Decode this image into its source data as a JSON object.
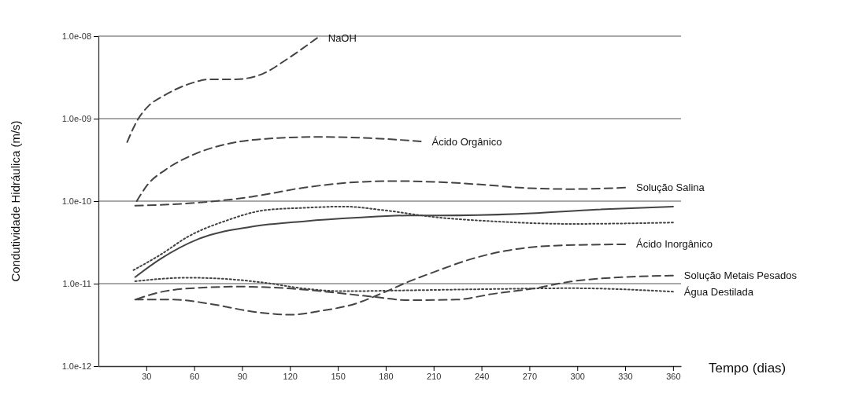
{
  "chart_data": {
    "type": "line",
    "xlabel": "Tempo (dias)",
    "ylabel": "Condutividade Hidráulica (m/s)",
    "xlim": [
      0,
      365
    ],
    "xticks": [
      30,
      60,
      90,
      120,
      150,
      180,
      210,
      240,
      270,
      300,
      330,
      360
    ],
    "ylim": [
      1e-12,
      1e-08
    ],
    "yticks": [
      {
        "value": 1e-12,
        "label": "1.0e-12"
      },
      {
        "value": 1e-11,
        "label": "1.0e-11"
      },
      {
        "value": 1e-10,
        "label": "1.0e-10"
      },
      {
        "value": 1e-09,
        "label": "1.0e-09"
      },
      {
        "value": 1e-08,
        "label": "1.0e-08"
      }
    ],
    "log": true,
    "grid": "y",
    "marker": "none",
    "series": [
      {
        "name": "NaOH",
        "color": "#444444",
        "line_style": "dashed",
        "x": [
          18,
          25,
          31,
          41,
          56,
          70,
          86,
          103,
          119,
          137
        ],
        "values": [
          5.2e-10,
          1e-09,
          1.4e-09,
          1.9e-09,
          2.6e-09,
          3e-09,
          3e-09,
          3.5e-09,
          5.4e-09,
          9.5e-09
        ]
      },
      {
        "name": "Ácido Orgânico",
        "color": "#444444",
        "line_style": "dashed",
        "x": [
          24,
          31,
          42,
          60,
          80,
          105,
          137,
          170,
          202
        ],
        "values": [
          1e-10,
          1.6e-10,
          2.4e-10,
          3.7e-10,
          4.9e-10,
          5.7e-10,
          6e-10,
          5.8e-10,
          5.3e-10
        ]
      },
      {
        "name": "Solução Salina",
        "color": "#444444",
        "line_style": "dashed",
        "x": [
          23,
          63,
          96,
          129,
          162,
          186,
          214,
          247,
          263,
          296,
          330
        ],
        "values": [
          8.8e-11,
          9.6e-11,
          1.13e-10,
          1.46e-10,
          1.7e-10,
          1.75e-10,
          1.7e-10,
          1.55e-10,
          1.46e-10,
          1.4e-10,
          1.46e-10
        ]
      },
      {
        "color": "#444444",
        "line_style": "dotted",
        "x": [
          22,
          39,
          56,
          80,
          105,
          129,
          154,
          178,
          211,
          247,
          296,
          360
        ],
        "values": [
          1.46e-11,
          2.25e-11,
          3.7e-11,
          5.8e-11,
          7.8e-11,
          8.3e-11,
          8.6e-11,
          7.8e-11,
          6.4e-11,
          5.7e-11,
          5.3e-11,
          5.5e-11
        ]
      },
      {
        "color": "#444444",
        "line_style": "solid",
        "x": [
          23,
          39,
          63,
          96,
          129,
          162,
          194,
          214,
          263,
          312,
          360
        ],
        "values": [
          1.2e-11,
          2e-11,
          3.5e-11,
          4.9e-11,
          5.7e-11,
          6.3e-11,
          6.7e-11,
          6.7e-11,
          7e-11,
          7.9e-11,
          8.6e-11
        ]
      },
      {
        "name": "Ácido Inorgânico",
        "color": "#444444",
        "line_style": "dashed",
        "x": [
          23,
          47,
          72,
          96,
          121,
          137,
          162,
          178,
          195,
          211,
          234,
          255,
          288,
          330
        ],
        "values": [
          6.4e-12,
          6.4e-12,
          5.6e-12,
          4.6e-12,
          4.2e-12,
          4.6e-12,
          5.8e-12,
          7.7e-12,
          1.07e-11,
          1.4e-11,
          2e-11,
          2.5e-11,
          2.9e-11,
          3e-11
        ]
      },
      {
        "name": "Solução Metais Pesados",
        "color": "#444444",
        "line_style": "dashed",
        "x": [
          24,
          39,
          63,
          88,
          121,
          145,
          170,
          195,
          224,
          247,
          272,
          296,
          329,
          360
        ],
        "values": [
          6.5e-12,
          7.9e-12,
          8.9e-12,
          9.2e-12,
          8.7e-12,
          7.9e-12,
          7e-12,
          6.3e-12,
          6.4e-12,
          7.5e-12,
          8.7e-12,
          1.06e-11,
          1.2e-11,
          1.25e-11
        ]
      },
      {
        "name": "Água Destilada",
        "color": "#444444",
        "line_style": "dotted",
        "x": [
          23,
          56,
          80,
          105,
          129,
          154,
          195,
          247,
          296,
          360
        ],
        "values": [
          1.07e-11,
          1.18e-11,
          1.14e-11,
          1.02e-11,
          8.7e-12,
          8.1e-12,
          8.3e-12,
          8.6e-12,
          8.8e-12,
          8e-12
        ]
      }
    ]
  }
}
